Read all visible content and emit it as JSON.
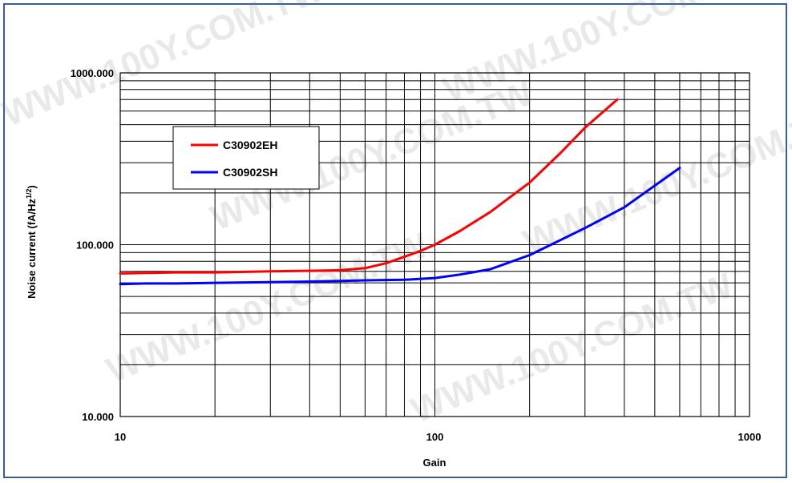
{
  "watermark": "WWW.100Y.COM.TW",
  "chart_data": {
    "type": "line",
    "xscale": "log",
    "yscale": "log",
    "xlim": [
      10,
      1000
    ],
    "ylim": [
      10,
      1000
    ],
    "xlabel": "Gain",
    "ylabel": "Noise current (fA/Hz",
    "ylabel_sup": "1/2",
    "ylabel_close": ")",
    "x_tick_labels": [
      "10",
      "100",
      "1000"
    ],
    "y_tick_labels": [
      "10.000",
      "100.000",
      "1000.000"
    ],
    "grid": true,
    "legend_position": "upper-left",
    "series": [
      {
        "name": "C30902EH",
        "color": "#ff0000",
        "x": [
          10,
          15,
          20,
          30,
          40,
          50,
          60,
          70,
          80,
          90,
          100,
          120,
          150,
          200,
          250,
          300,
          380
        ],
        "y": [
          68,
          69,
          69,
          70,
          70.5,
          71,
          73,
          78,
          85,
          92,
          100,
          120,
          155,
          230,
          340,
          480,
          700
        ]
      },
      {
        "name": "C30902SH",
        "color": "#0000ff",
        "x": [
          10,
          12,
          15,
          20,
          30,
          40,
          50,
          60,
          80,
          100,
          120,
          150,
          200,
          300,
          400,
          600
        ],
        "y": [
          59,
          59.5,
          59.5,
          60,
          60.5,
          61,
          61.5,
          62,
          62.5,
          64,
          67,
          72,
          87,
          125,
          165,
          280
        ]
      }
    ]
  }
}
